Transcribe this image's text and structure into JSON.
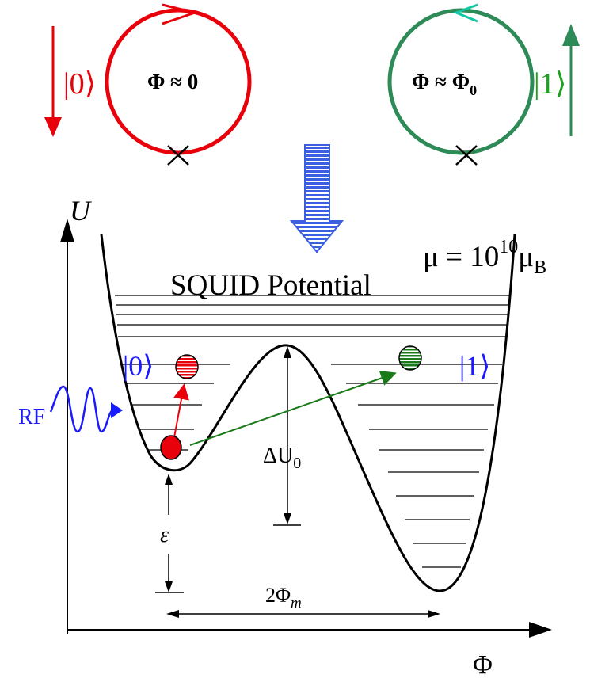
{
  "top": {
    "left_ket": "|0⟩",
    "left_flux": "Φ ≈ 0",
    "right_ket": "|1⟩",
    "right_flux_main": "Φ ≈ Φ",
    "right_flux_sub": "0"
  },
  "potential": {
    "title": "SQUID Potential",
    "moment_prefix": "μ = 10",
    "moment_exp": "10",
    "moment_unit": "μ",
    "moment_unit_sub": "B",
    "axis_y": "U",
    "axis_x": "Φ",
    "ket_left": "|0⟩",
    "ket_right": "|1⟩",
    "rf_label": "RF",
    "barrier_label_main": "ΔU",
    "barrier_label_sub": "0",
    "asym_label": "ε",
    "sep_label_main": "2Φ",
    "sep_label_sub": "m"
  },
  "colors": {
    "red": "#e8000b",
    "green": "#2e8b57",
    "dark_green": "#1a7a1a",
    "blue": "#1a1aff",
    "arrow_blue": "#3a5fe0",
    "black": "#000000"
  }
}
